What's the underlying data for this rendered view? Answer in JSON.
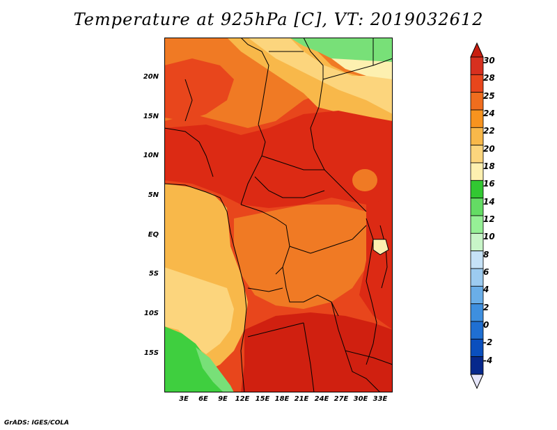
{
  "title": "Temperature at 925hPa [C], VT: 2019032612",
  "credit": "GrADS: IGES/COLA",
  "lat_labels": [
    "20N",
    "15N",
    "10N",
    "5N",
    "EQ",
    "5S",
    "10S",
    "15S"
  ],
  "lon_labels": [
    "3E",
    "6E",
    "9E",
    "12E",
    "15E",
    "18E",
    "21E",
    "24E",
    "27E",
    "30E",
    "33E"
  ],
  "colorbar": {
    "labels": [
      "30",
      "28",
      "25",
      "24",
      "22",
      "20",
      "18",
      "16",
      "14",
      "12",
      "10",
      "8",
      "6",
      "4",
      "2",
      "0",
      "-2",
      "-4"
    ],
    "colors": [
      "#d7301f",
      "#e8461c",
      "#f06d1e",
      "#f7931e",
      "#f8b84a",
      "#fcd57d",
      "#fdf0b0",
      "#32c832",
      "#64dc64",
      "#96f096",
      "#c8f5c8",
      "#c6e2f7",
      "#9ccbf0",
      "#6aaee8",
      "#3e8fdf",
      "#1f6fd2",
      "#0a4fbe",
      "#06288c"
    ],
    "arrow_top_color": "#c81e10",
    "arrow_bottom_color": "#e6e6fa"
  },
  "map_colors": {
    "red": "#dc2a14",
    "deep_red": "#d02010",
    "orange_red": "#ea4a1c",
    "orange": "#f07a24",
    "light_orange": "#f8a040",
    "yellow_orange": "#f9c060",
    "pale_yellow": "#fde49a",
    "green": "#3fcf3f",
    "light_green": "#78e078",
    "pale_green": "#b4f0a0"
  }
}
